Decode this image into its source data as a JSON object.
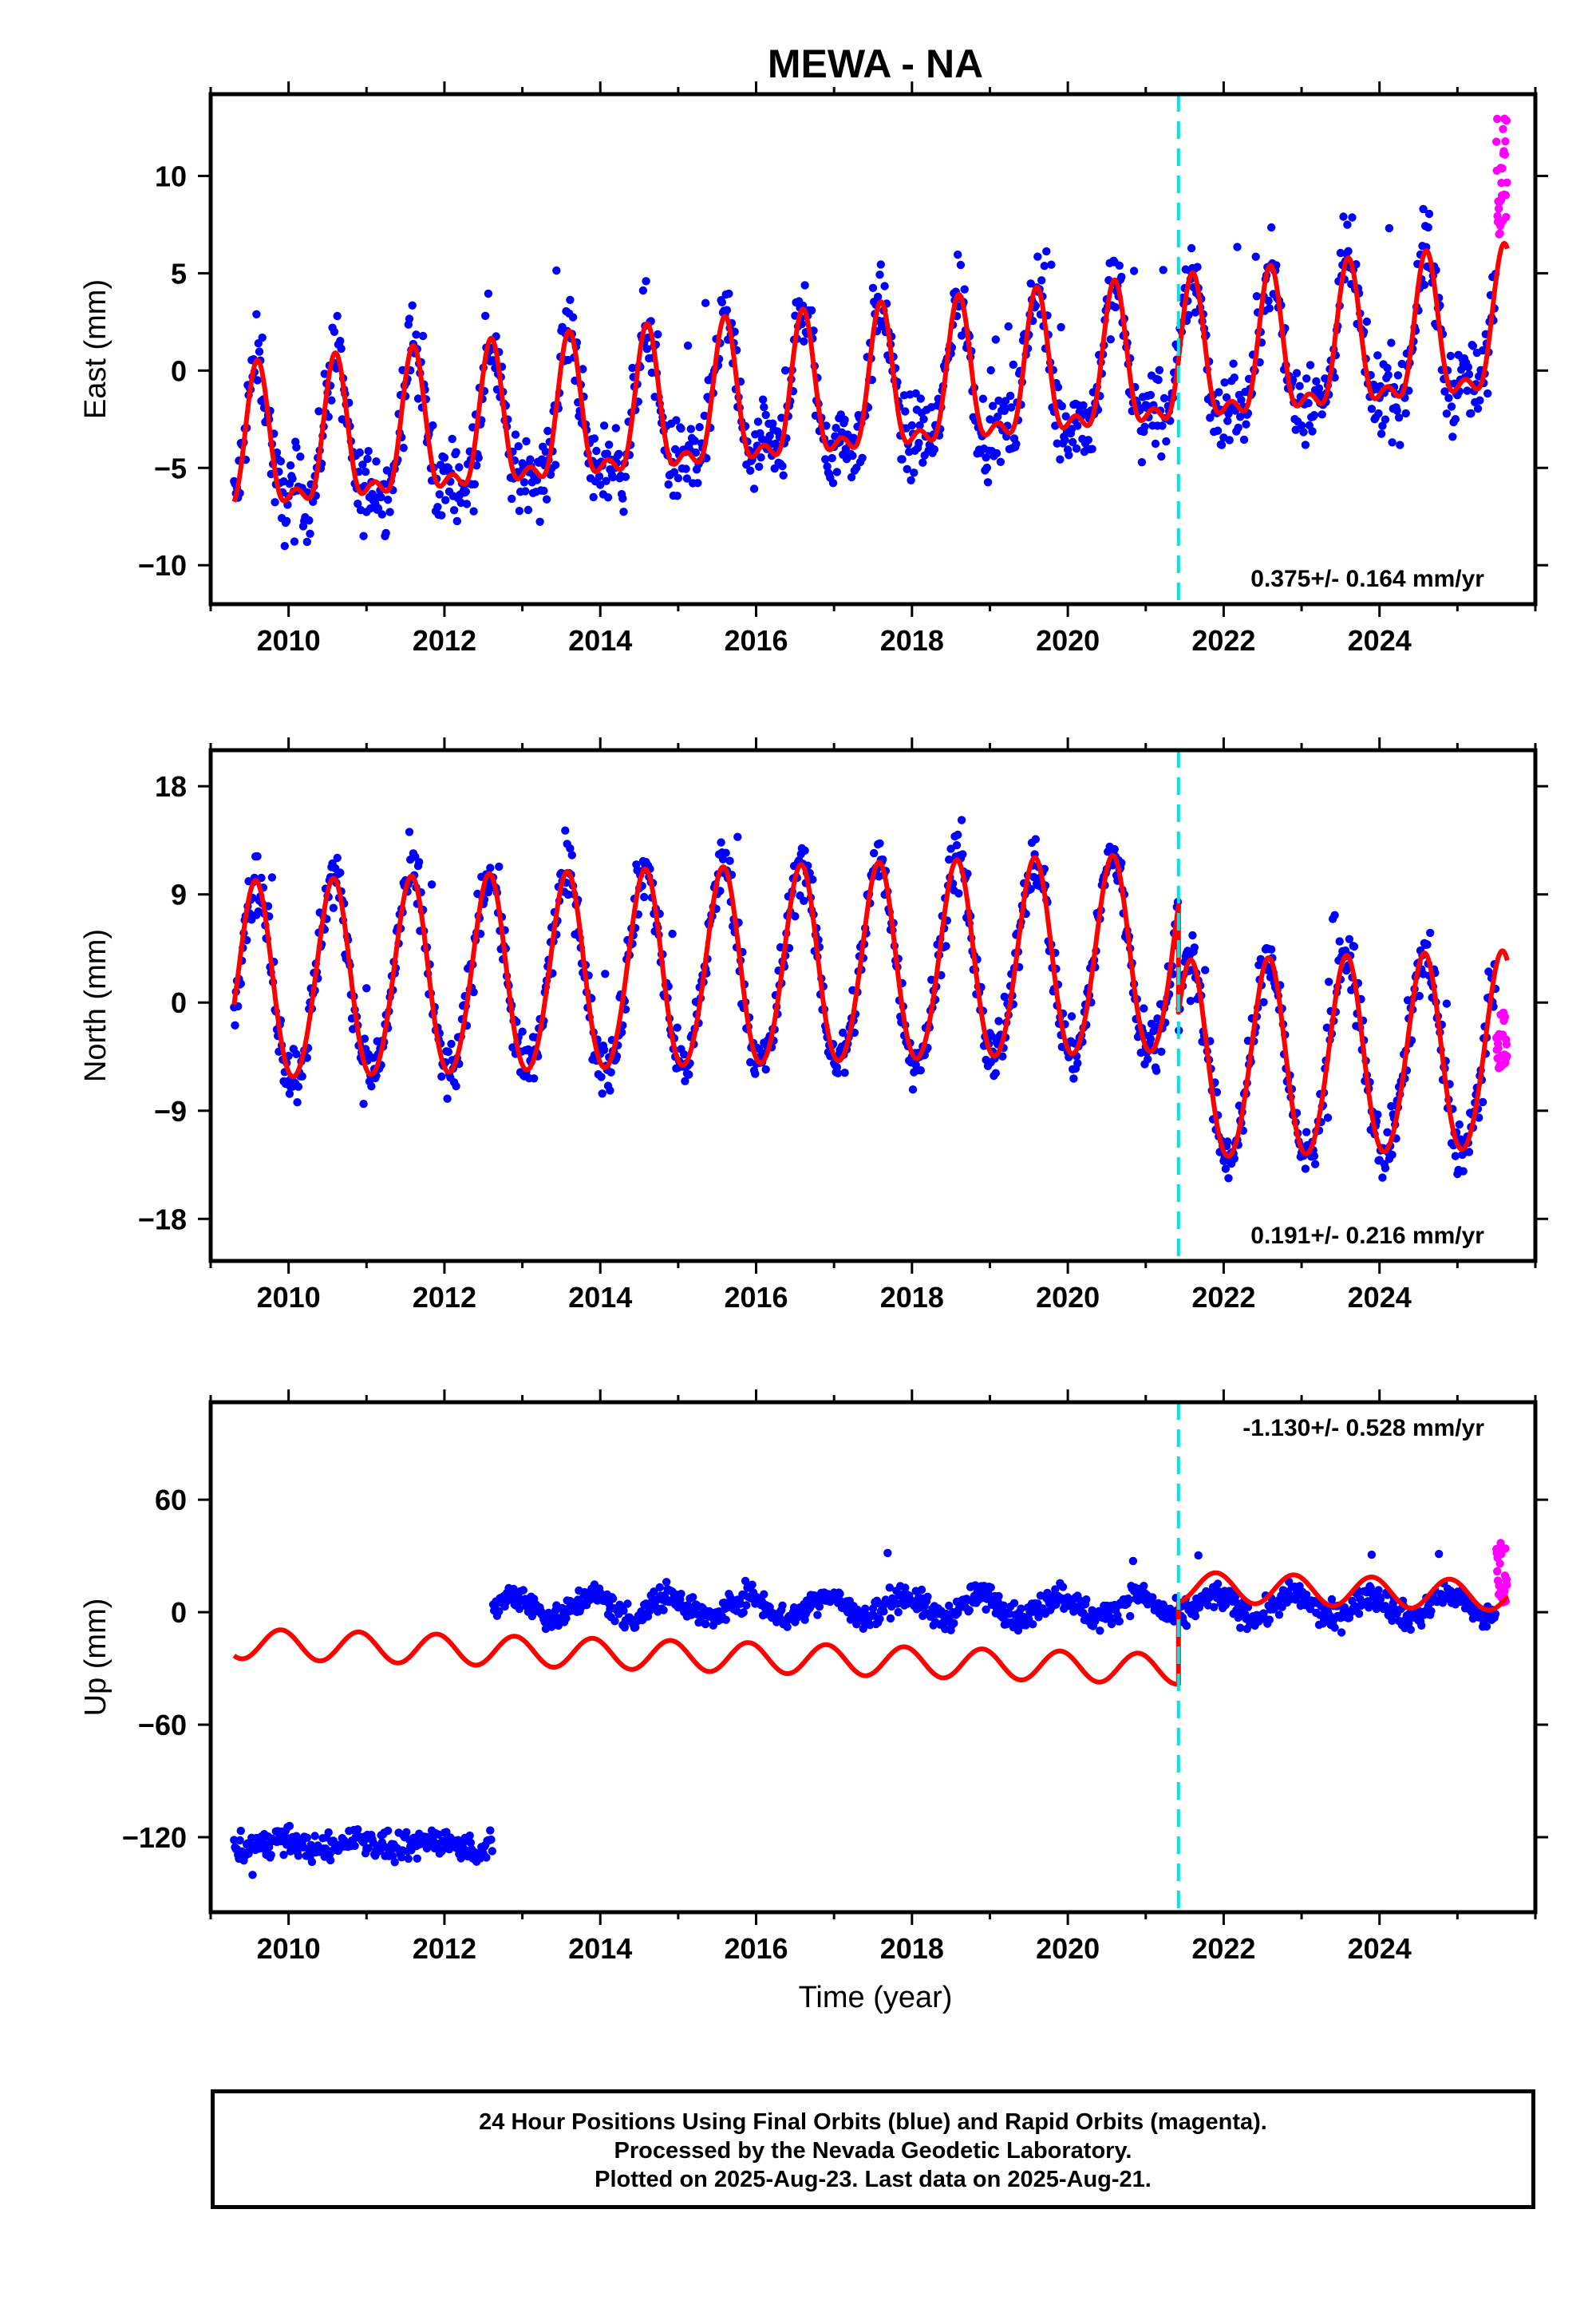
{
  "title": "MEWA - NA",
  "xlabel": "Time (year)",
  "colors": {
    "final_orbits": "#0000ff",
    "rapid_orbits": "#ff00ff",
    "model_fit": "#ff0000",
    "equipment_change_line": "#00e5e5",
    "frame": "#000000"
  },
  "footer": {
    "line1": "24 Hour Positions Using Final Orbits (blue) and Rapid Orbits (magenta).",
    "line2": "Processed by the Nevada Geodetic Laboratory.",
    "line3": "Plotted on 2025-Aug-23. Last data on 2025-Aug-21."
  },
  "chart_data": [
    {
      "type": "scatter",
      "component": "east",
      "ylabel": "East (mm)",
      "xlim": [
        2009.0,
        2026.0
      ],
      "ylim": [
        -12.0,
        14.2
      ],
      "xticks": [
        2010,
        2012,
        2014,
        2016,
        2018,
        2020,
        2022,
        2024
      ],
      "yticks": [
        -10,
        -5,
        0,
        5,
        10
      ],
      "ytick_labels": [
        "−10",
        "−5",
        "0",
        "5",
        "10"
      ],
      "rate_text": "0.375+/- 0.164 mm/yr",
      "rate_position": "bottom-right",
      "offset_epoch": 2021.42,
      "data_span": [
        2009.3,
        2025.64
      ],
      "rapid_span": [
        2025.5,
        2025.64
      ],
      "rapid_range": [
        6.5,
        13.5
      ],
      "model": {
        "segments": [
          {
            "start": 2009.3,
            "end": 2012.6,
            "intercept": -1.4,
            "rate": 0.375
          },
          {
            "start": 2012.6,
            "end": 2025.64,
            "intercept": -1.4,
            "rate": 0.375
          }
        ],
        "annual_amp": 3.4,
        "annual_peak": 0.6,
        "semiannual_amp": 1.5,
        "semiannual_peak": 0.6
      },
      "scatter_spread": 1.5
    },
    {
      "type": "scatter",
      "component": "north",
      "ylabel": "North (mm)",
      "xlim": [
        2009.0,
        2026.0
      ],
      "ylim": [
        -21.5,
        21.0
      ],
      "xticks": [
        2010,
        2012,
        2014,
        2016,
        2018,
        2020,
        2022,
        2024
      ],
      "yticks": [
        -18,
        -9,
        0,
        9,
        18
      ],
      "ytick_labels": [
        "−18",
        "−9",
        "0",
        "9",
        "18"
      ],
      "rate_text": "0.191+/- 0.216 mm/yr",
      "rate_position": "bottom-right",
      "offset_epoch": 2021.42,
      "data_span": [
        2009.3,
        2025.64
      ],
      "rapid_span": [
        2025.5,
        2025.64
      ],
      "rapid_range": [
        -5.5,
        -0.5
      ],
      "model": {
        "segments": [
          {
            "start": 2009.3,
            "end": 2021.42,
            "intercept": 2.9,
            "rate": 0.191
          },
          {
            "start": 2021.42,
            "end": 2025.64,
            "intercept": -6.0,
            "rate": 0.191
          }
        ],
        "annual_amp": 8.2,
        "annual_peak": 0.57,
        "semiannual_amp": 0.6,
        "semiannual_peak": 0.1
      },
      "scatter_spread": 1.8
    },
    {
      "type": "scatter",
      "component": "up",
      "ylabel": "Up (mm)",
      "xlim": [
        2009.0,
        2026.0
      ],
      "ylim": [
        -160.0,
        112.0
      ],
      "xticks": [
        2010,
        2012,
        2014,
        2016,
        2018,
        2020,
        2022,
        2024
      ],
      "yticks": [
        -120,
        -60,
        0,
        60
      ],
      "ytick_labels": [
        "−120",
        "−60",
        "0",
        "60"
      ],
      "rate_text": "-1.130+/- 0.528 mm/yr",
      "rate_position": "top-right",
      "offset_epoch": 2021.42,
      "data_span": [
        2009.3,
        2025.64
      ],
      "rapid_span": [
        2025.5,
        2025.64
      ],
      "rapid_range": [
        5.0,
        38.0
      ],
      "model": {
        "segments": [
          {
            "start": 2009.3,
            "end": 2021.42,
            "intercept": -26.0,
            "rate": -1.13
          },
          {
            "start": 2021.42,
            "end": 2025.64,
            "intercept": 18.0,
            "rate": -1.13
          }
        ],
        "annual_amp": 8.0,
        "annual_peak": 0.9,
        "semiannual_amp": 0.0,
        "semiannual_peak": 0.0
      },
      "scatter_segments": [
        {
          "start": 2009.3,
          "end": 2012.62,
          "center": -124.0,
          "amp": 3.0
        },
        {
          "start": 2012.62,
          "end": 2025.64,
          "center": 3.0,
          "amp": 6.0
        }
      ],
      "scatter_spread": 5.0
    }
  ]
}
